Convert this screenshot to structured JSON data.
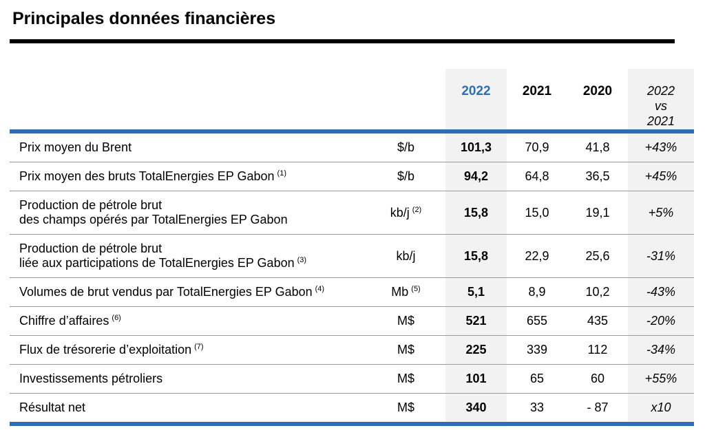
{
  "title": "Principales données financières",
  "colors": {
    "accent_blue": "#2F6DB4",
    "column_highlight_bg": "#F2F2F2",
    "row_separator": "#9A9A9A",
    "title_rule": "#000000"
  },
  "table": {
    "header": {
      "y2022": "2022",
      "y2021": "2021",
      "y2020": "2020",
      "delta": "2022\nvs\n2021"
    },
    "rows": [
      {
        "label": "Prix moyen du Brent",
        "label_sup": "",
        "unit": "$/b",
        "unit_sup": "",
        "v2022": "101,3",
        "v2021": "70,9",
        "v2020": "41,8",
        "delta": "+43%"
      },
      {
        "label": "Prix moyen des bruts TotalEnergies EP Gabon",
        "label_sup": "(1)",
        "unit": "$/b",
        "unit_sup": "",
        "v2022": "94,2",
        "v2021": "64,8",
        "v2020": "36,5",
        "delta": "+45%"
      },
      {
        "label": "Production de pétrole brut\ndes champs opérés par TotalEnergies EP Gabon",
        "label_sup": "",
        "unit": "kb/j",
        "unit_sup": "(2)",
        "v2022": "15,8",
        "v2021": "15,0",
        "v2020": "19,1",
        "delta": "+5%"
      },
      {
        "label": "Production de pétrole brut\nliée aux participations de TotalEnergies EP Gabon",
        "label_sup": "(3)",
        "unit": "kb/j",
        "unit_sup": "",
        "v2022": "15,8",
        "v2021": "22,9",
        "v2020": "25,6",
        "delta": "-31%"
      },
      {
        "label": "Volumes de brut vendus par TotalEnergies EP Gabon",
        "label_sup": "(4)",
        "unit": "Mb",
        "unit_sup": "(5)",
        "v2022": "5,1",
        "v2021": "8,9",
        "v2020": "10,2",
        "delta": "-43%"
      },
      {
        "label": "Chiffre d’affaires",
        "label_sup": "(6)",
        "unit": "M$",
        "unit_sup": "",
        "v2022": "521",
        "v2021": "655",
        "v2020": "435",
        "delta": "-20%"
      },
      {
        "label": "Flux de trésorerie d’exploitation",
        "label_sup": "(7)",
        "unit": "M$",
        "unit_sup": "",
        "v2022": "225",
        "v2021": "339",
        "v2020": "112",
        "delta": "-34%"
      },
      {
        "label": "Investissements pétroliers",
        "label_sup": "",
        "unit": "M$",
        "unit_sup": "",
        "v2022": "101",
        "v2021": "65",
        "v2020": "60",
        "delta": "+55%"
      },
      {
        "label": "Résultat net",
        "label_sup": "",
        "unit": "M$",
        "unit_sup": "",
        "v2022": "340",
        "v2021": "33",
        "v2020": "- 87",
        "delta": "x10"
      }
    ]
  }
}
